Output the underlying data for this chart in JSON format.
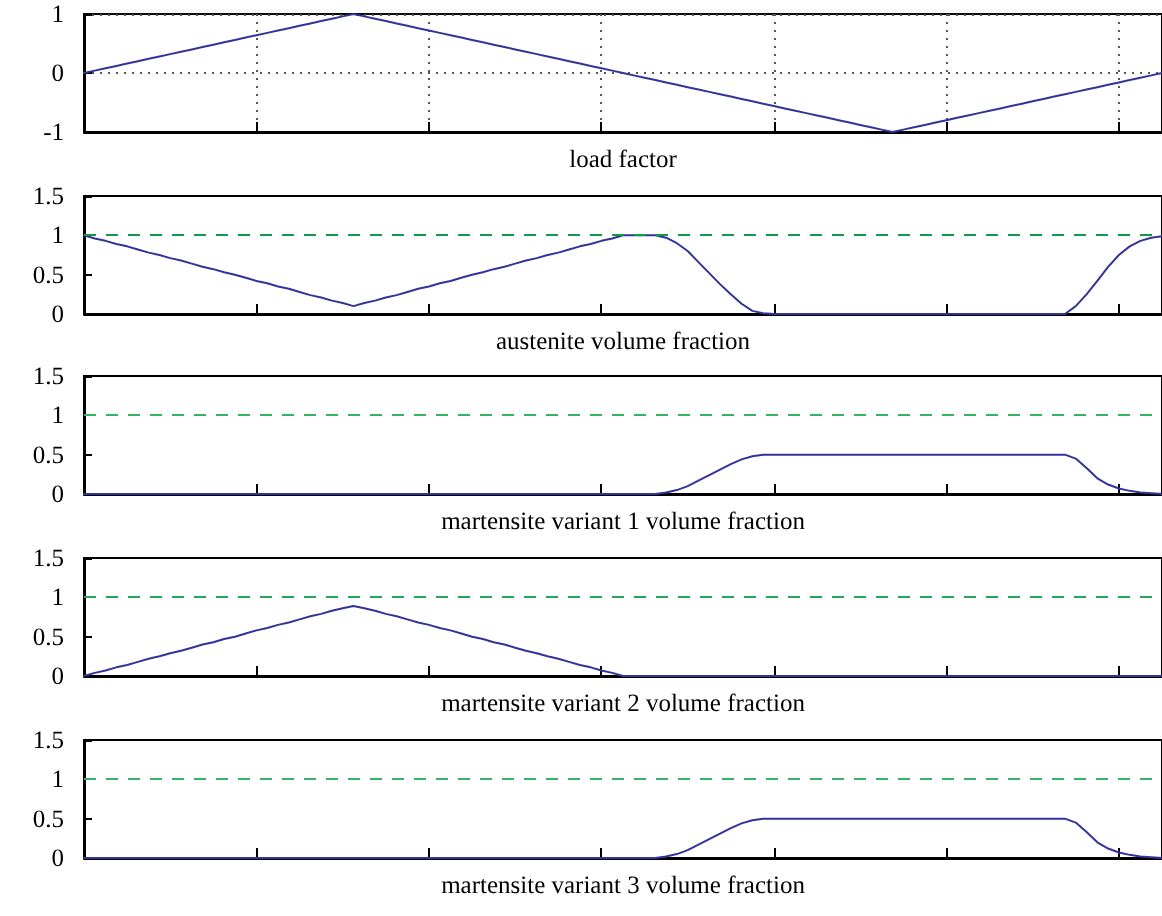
{
  "chart_data": [
    {
      "type": "line",
      "xlabel": "load factor",
      "categories": [
        null,
        null,
        null,
        null,
        null,
        null,
        null,
        null,
        null,
        null,
        null,
        null,
        null,
        null,
        null,
        null,
        null,
        null,
        null,
        null,
        null,
        null,
        null,
        null,
        null,
        null,
        null,
        null,
        null,
        null,
        null,
        null,
        null,
        null,
        null,
        null,
        null,
        null,
        null,
        null,
        null,
        null,
        null,
        null,
        null,
        null,
        null,
        null,
        null,
        null,
        null,
        null,
        null,
        null,
        null,
        null,
        null,
        null,
        null,
        null,
        null,
        null,
        null,
        null,
        null,
        null,
        null,
        null,
        null,
        null,
        null,
        null,
        null,
        null,
        null,
        null,
        null,
        null,
        null,
        null,
        null,
        null,
        null,
        null,
        null,
        null,
        null,
        null,
        null,
        null,
        null,
        null,
        null,
        null,
        null,
        null,
        null,
        null,
        null,
        null,
        null
      ],
      "series": [
        {
          "color": "#333399",
          "values": [
            0,
            0.04,
            0.08,
            0.12,
            0.16,
            0.2,
            0.24,
            0.28,
            0.32,
            0.36,
            0.4,
            0.44,
            0.48,
            0.52,
            0.56,
            0.6,
            0.64,
            0.68,
            0.72,
            0.76,
            0.8,
            0.84,
            0.88,
            0.92,
            0.96,
            1,
            0.96,
            0.92,
            0.88,
            0.84,
            0.8,
            0.76,
            0.72,
            0.68,
            0.64,
            0.6,
            0.56,
            0.52,
            0.48,
            0.44,
            0.4,
            0.36,
            0.32,
            0.28,
            0.24,
            0.2,
            0.16,
            0.12,
            0.08,
            0.04,
            0,
            -0.04,
            -0.08,
            -0.12,
            -0.16,
            -0.2,
            -0.24,
            -0.28,
            -0.32,
            -0.36,
            -0.4,
            -0.44,
            -0.48,
            -0.52,
            -0.56,
            -0.6,
            -0.64,
            -0.68,
            -0.72,
            -0.76,
            -0.8,
            -0.84,
            -0.88,
            -0.92,
            -0.96,
            -1,
            -0.96,
            -0.92,
            -0.88,
            -0.84,
            -0.8,
            -0.76,
            -0.72,
            -0.68,
            -0.64,
            -0.6,
            -0.56,
            -0.52,
            -0.48,
            -0.44,
            -0.4,
            -0.36,
            -0.32,
            -0.28,
            -0.24,
            -0.2,
            -0.16,
            -0.12,
            -0.08,
            -0.04,
            0
          ]
        }
      ],
      "ylim": [
        -1,
        1
      ],
      "yticks": [
        -1,
        0,
        1
      ],
      "grid": true,
      "tick_labels": "y"
    },
    {
      "type": "line",
      "xlabel": "austenite volume fraction",
      "categories": [
        null,
        null,
        null,
        null,
        null,
        null,
        null,
        null,
        null,
        null,
        null,
        null,
        null,
        null,
        null,
        null,
        null,
        null,
        null,
        null,
        null,
        null,
        null,
        null,
        null,
        null,
        null,
        null,
        null,
        null,
        null,
        null,
        null,
        null,
        null,
        null,
        null,
        null,
        null,
        null,
        null,
        null,
        null,
        null,
        null,
        null,
        null,
        null,
        null,
        null,
        null,
        null,
        null,
        null,
        null,
        null,
        null,
        null,
        null,
        null,
        null,
        null,
        null,
        null,
        null,
        null,
        null,
        null,
        null,
        null,
        null,
        null,
        null,
        null,
        null,
        null,
        null,
        null,
        null,
        null,
        null,
        null,
        null,
        null,
        null,
        null,
        null,
        null,
        null,
        null,
        null,
        null,
        null,
        null,
        null,
        null,
        null,
        null,
        null,
        null,
        null
      ],
      "series": [
        {
          "color": "#333399",
          "values": [
            1,
            0.96,
            0.93,
            0.89,
            0.86,
            0.82,
            0.78,
            0.75,
            0.71,
            0.68,
            0.64,
            0.6,
            0.57,
            0.53,
            0.5,
            0.46,
            0.42,
            0.39,
            0.35,
            0.32,
            0.28,
            0.24,
            0.21,
            0.17,
            0.14,
            0.1,
            0.14,
            0.17,
            0.21,
            0.24,
            0.28,
            0.32,
            0.35,
            0.39,
            0.42,
            0.46,
            0.5,
            0.53,
            0.57,
            0.6,
            0.64,
            0.68,
            0.71,
            0.75,
            0.78,
            0.82,
            0.86,
            0.89,
            0.93,
            0.96,
            1,
            1,
            1,
            1,
            0.97,
            0.9,
            0.8,
            0.66,
            0.52,
            0.38,
            0.25,
            0.13,
            0.04,
            0.01,
            0,
            0,
            0,
            0,
            0,
            0,
            0,
            0,
            0,
            0,
            0,
            0,
            0,
            0,
            0,
            0,
            0,
            0,
            0,
            0,
            0,
            0,
            0,
            0,
            0,
            0,
            0,
            0,
            0.1,
            0.25,
            0.42,
            0.6,
            0.75,
            0.86,
            0.93,
            0.97,
            0.99
          ]
        }
      ],
      "ylim": [
        0,
        1.5
      ],
      "yticks": [
        0,
        0.5,
        1,
        1.5
      ],
      "tick_labels": "y",
      "ref_lines": [
        {
          "axis": "y",
          "value": 1,
          "color": "#11994a",
          "line_style": "dashed"
        }
      ]
    },
    {
      "type": "line",
      "xlabel": "martensite variant 1 volume fraction",
      "categories": [
        null,
        null,
        null,
        null,
        null,
        null,
        null,
        null,
        null,
        null,
        null,
        null,
        null,
        null,
        null,
        null,
        null,
        null,
        null,
        null,
        null,
        null,
        null,
        null,
        null,
        null,
        null,
        null,
        null,
        null,
        null,
        null,
        null,
        null,
        null,
        null,
        null,
        null,
        null,
        null,
        null,
        null,
        null,
        null,
        null,
        null,
        null,
        null,
        null,
        null,
        null,
        null,
        null,
        null,
        null,
        null,
        null,
        null,
        null,
        null,
        null,
        null,
        null,
        null,
        null,
        null,
        null,
        null,
        null,
        null,
        null,
        null,
        null,
        null,
        null,
        null,
        null,
        null,
        null,
        null,
        null,
        null,
        null,
        null,
        null,
        null,
        null,
        null,
        null,
        null,
        null,
        null,
        null,
        null,
        null,
        null,
        null,
        null,
        null,
        null,
        null
      ],
      "series": [
        {
          "color": "#333399",
          "values": [
            0,
            0,
            0,
            0,
            0,
            0,
            0,
            0,
            0,
            0,
            0,
            0,
            0,
            0,
            0,
            0,
            0,
            0,
            0,
            0,
            0,
            0,
            0,
            0,
            0,
            0,
            0,
            0,
            0,
            0,
            0,
            0,
            0,
            0,
            0,
            0,
            0,
            0,
            0,
            0,
            0,
            0,
            0,
            0,
            0,
            0,
            0,
            0,
            0,
            0,
            0,
            0,
            0,
            0,
            0.02,
            0.05,
            0.1,
            0.17,
            0.24,
            0.31,
            0.38,
            0.44,
            0.48,
            0.5,
            0.5,
            0.5,
            0.5,
            0.5,
            0.5,
            0.5,
            0.5,
            0.5,
            0.5,
            0.5,
            0.5,
            0.5,
            0.5,
            0.5,
            0.5,
            0.5,
            0.5,
            0.5,
            0.5,
            0.5,
            0.5,
            0.5,
            0.5,
            0.5,
            0.5,
            0.5,
            0.5,
            0.5,
            0.45,
            0.33,
            0.2,
            0.12,
            0.07,
            0.04,
            0.02,
            0.01,
            0
          ]
        }
      ],
      "ylim": [
        0,
        1.5
      ],
      "yticks": [
        0,
        0.5,
        1,
        1.5
      ],
      "tick_labels": "y",
      "ref_lines": [
        {
          "axis": "y",
          "value": 1,
          "color": "#33b366",
          "line_style": "dashed"
        }
      ]
    },
    {
      "type": "line",
      "xlabel": "martensite variant 2 volume fraction",
      "categories": [
        null,
        null,
        null,
        null,
        null,
        null,
        null,
        null,
        null,
        null,
        null,
        null,
        null,
        null,
        null,
        null,
        null,
        null,
        null,
        null,
        null,
        null,
        null,
        null,
        null,
        null,
        null,
        null,
        null,
        null,
        null,
        null,
        null,
        null,
        null,
        null,
        null,
        null,
        null,
        null,
        null,
        null,
        null,
        null,
        null,
        null,
        null,
        null,
        null,
        null,
        null,
        null,
        null,
        null,
        null,
        null,
        null,
        null,
        null,
        null,
        null,
        null,
        null,
        null,
        null,
        null,
        null,
        null,
        null,
        null,
        null,
        null,
        null,
        null,
        null,
        null,
        null,
        null,
        null,
        null,
        null,
        null,
        null,
        null,
        null,
        null,
        null,
        null,
        null,
        null,
        null,
        null,
        null,
        null,
        null,
        null,
        null,
        null,
        null,
        null,
        null
      ],
      "series": [
        {
          "color": "#333399",
          "values": [
            0,
            0.04,
            0.07,
            0.11,
            0.14,
            0.18,
            0.22,
            0.25,
            0.29,
            0.32,
            0.36,
            0.4,
            0.43,
            0.47,
            0.5,
            0.54,
            0.58,
            0.61,
            0.65,
            0.68,
            0.72,
            0.76,
            0.79,
            0.83,
            0.86,
            0.89,
            0.86,
            0.83,
            0.79,
            0.76,
            0.72,
            0.68,
            0.65,
            0.61,
            0.58,
            0.54,
            0.5,
            0.47,
            0.43,
            0.4,
            0.36,
            0.32,
            0.29,
            0.25,
            0.22,
            0.18,
            0.14,
            0.11,
            0.07,
            0.04,
            0,
            0,
            0,
            0,
            0,
            0,
            0,
            0,
            0,
            0,
            0,
            0,
            0,
            0,
            0,
            0,
            0,
            0,
            0,
            0,
            0,
            0,
            0,
            0,
            0,
            0,
            0,
            0,
            0,
            0,
            0,
            0,
            0,
            0,
            0,
            0,
            0,
            0,
            0,
            0,
            0,
            0,
            0,
            0,
            0,
            0,
            0,
            0,
            0,
            0,
            0
          ]
        }
      ],
      "ylim": [
        0,
        1.5
      ],
      "yticks": [
        0,
        0.5,
        1,
        1.5
      ],
      "tick_labels": "y",
      "ref_lines": [
        {
          "axis": "y",
          "value": 1,
          "color": "#22aa55",
          "line_style": "dashed"
        }
      ]
    },
    {
      "type": "line",
      "xlabel": "martensite variant 3 volume fraction",
      "categories": [
        null,
        null,
        null,
        null,
        null,
        null,
        null,
        null,
        null,
        null,
        null,
        null,
        null,
        null,
        null,
        null,
        null,
        null,
        null,
        null,
        null,
        null,
        null,
        null,
        null,
        null,
        null,
        null,
        null,
        null,
        null,
        null,
        null,
        null,
        null,
        null,
        null,
        null,
        null,
        null,
        null,
        null,
        null,
        null,
        null,
        null,
        null,
        null,
        null,
        null,
        null,
        null,
        null,
        null,
        null,
        null,
        null,
        null,
        null,
        null,
        null,
        null,
        null,
        null,
        null,
        null,
        null,
        null,
        null,
        null,
        null,
        null,
        null,
        null,
        null,
        null,
        null,
        null,
        null,
        null,
        null,
        null,
        null,
        null,
        null,
        null,
        null,
        null,
        null,
        null,
        null,
        null,
        null,
        null,
        null,
        null,
        null,
        null,
        null,
        null,
        null
      ],
      "series": [
        {
          "color": "#333399",
          "values": [
            0,
            0,
            0,
            0,
            0,
            0,
            0,
            0,
            0,
            0,
            0,
            0,
            0,
            0,
            0,
            0,
            0,
            0,
            0,
            0,
            0,
            0,
            0,
            0,
            0,
            0,
            0,
            0,
            0,
            0,
            0,
            0,
            0,
            0,
            0,
            0,
            0,
            0,
            0,
            0,
            0,
            0,
            0,
            0,
            0,
            0,
            0,
            0,
            0,
            0,
            0,
            0,
            0,
            0,
            0.02,
            0.05,
            0.1,
            0.17,
            0.24,
            0.31,
            0.38,
            0.44,
            0.48,
            0.5,
            0.5,
            0.5,
            0.5,
            0.5,
            0.5,
            0.5,
            0.5,
            0.5,
            0.5,
            0.5,
            0.5,
            0.5,
            0.5,
            0.5,
            0.5,
            0.5,
            0.5,
            0.5,
            0.5,
            0.5,
            0.5,
            0.5,
            0.5,
            0.5,
            0.5,
            0.5,
            0.5,
            0.5,
            0.45,
            0.33,
            0.2,
            0.12,
            0.07,
            0.04,
            0.02,
            0.01,
            0
          ]
        }
      ],
      "ylim": [
        0,
        1.5
      ],
      "yticks": [
        0,
        0.5,
        1,
        1.5
      ],
      "tick_labels": "y",
      "ref_lines": [
        {
          "axis": "y",
          "value": 1,
          "color": "#33b366",
          "line_style": "dashed"
        }
      ]
    }
  ]
}
